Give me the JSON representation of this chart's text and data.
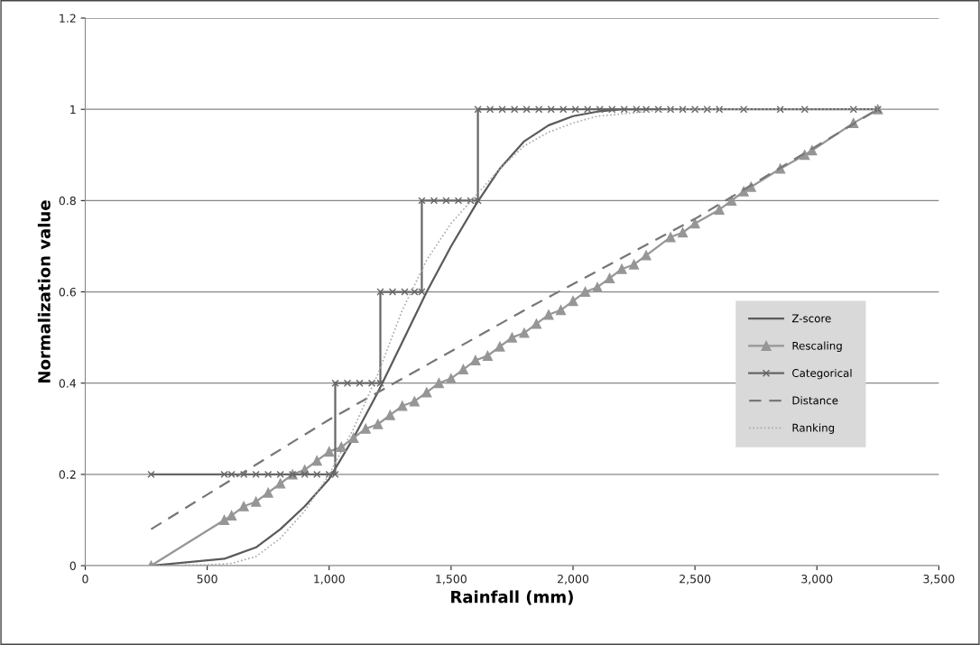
{
  "chart_data": {
    "type": "line",
    "xlabel": "Rainfall (mm)",
    "ylabel": "Normalization value",
    "xlim": [
      0,
      3500
    ],
    "xticks": [
      0,
      {
        "value": 500,
        "label": "500"
      },
      {
        "value": 1000,
        "label": "1,000"
      },
      {
        "value": 1500,
        "label": "1,500"
      },
      {
        "value": 2000,
        "label": "2,000"
      },
      {
        "value": 2500,
        "label": "2,500"
      },
      {
        "value": 3000,
        "label": "3,000"
      },
      {
        "value": 3500,
        "label": "3,500"
      }
    ],
    "ylim": [
      0,
      1.2
    ],
    "yticks": [
      0,
      0.2,
      0.4,
      0.6,
      0.8,
      1,
      1.2
    ],
    "grid": "y",
    "legend": "right",
    "series": [
      {
        "name": "Z-score",
        "color": "#5a5a5a",
        "marker": "none",
        "line_style": "solid",
        "x": [
          270,
          570,
          700,
          800,
          900,
          1000,
          1100,
          1200,
          1300,
          1400,
          1500,
          1600,
          1700,
          1800,
          1900,
          2000,
          2100,
          2200,
          2300
        ],
        "values": [
          0,
          0.015,
          0.04,
          0.08,
          0.13,
          0.19,
          0.28,
          0.38,
          0.49,
          0.6,
          0.7,
          0.79,
          0.87,
          0.93,
          0.965,
          0.985,
          0.995,
          1,
          1
        ]
      },
      {
        "name": "Rescaling",
        "color": "#969696",
        "marker": "triangle",
        "line_style": "solid",
        "x": [
          270,
          570,
          600,
          650,
          700,
          750,
          800,
          850,
          900,
          950,
          1000,
          1050,
          1100,
          1150,
          1200,
          1250,
          1300,
          1350,
          1400,
          1450,
          1500,
          1550,
          1600,
          1650,
          1700,
          1750,
          1800,
          1850,
          1900,
          1950,
          2000,
          2050,
          2100,
          2150,
          2200,
          2250,
          2300,
          2400,
          2450,
          2500,
          2600,
          2650,
          2700,
          2730,
          2850,
          2950,
          2980,
          3150,
          3250
        ],
        "values": [
          0,
          0.1,
          0.11,
          0.13,
          0.14,
          0.16,
          0.18,
          0.2,
          0.21,
          0.23,
          0.25,
          0.26,
          0.28,
          0.3,
          0.31,
          0.33,
          0.35,
          0.36,
          0.38,
          0.4,
          0.41,
          0.43,
          0.45,
          0.46,
          0.48,
          0.5,
          0.51,
          0.53,
          0.55,
          0.56,
          0.58,
          0.6,
          0.61,
          0.63,
          0.65,
          0.66,
          0.68,
          0.72,
          0.73,
          0.75,
          0.78,
          0.8,
          0.82,
          0.83,
          0.87,
          0.9,
          0.91,
          0.97,
          1
        ]
      },
      {
        "name": "Categorical",
        "color": "#666666",
        "marker": "cross",
        "line_style": "solid",
        "x": [
          270,
          570,
          600,
          650,
          700,
          750,
          800,
          850,
          900,
          950,
          1000,
          1025,
          1025,
          1075,
          1125,
          1175,
          1210,
          1210,
          1260,
          1310,
          1350,
          1380,
          1380,
          1430,
          1480,
          1530,
          1580,
          1610,
          1610,
          1660,
          1710,
          1760,
          1810,
          1860,
          1910,
          1960,
          2010,
          2060,
          2110,
          2160,
          2210,
          2260,
          2300,
          2350,
          2400,
          2450,
          2500,
          2550,
          2600,
          2700,
          2850,
          2950,
          3150,
          3250
        ],
        "values": [
          0.2,
          0.2,
          0.2,
          0.2,
          0.2,
          0.2,
          0.2,
          0.2,
          0.2,
          0.2,
          0.2,
          0.2,
          0.4,
          0.4,
          0.4,
          0.4,
          0.4,
          0.6,
          0.6,
          0.6,
          0.6,
          0.6,
          0.8,
          0.8,
          0.8,
          0.8,
          0.8,
          0.8,
          1,
          1,
          1,
          1,
          1,
          1,
          1,
          1,
          1,
          1,
          1,
          1,
          1,
          1,
          1,
          1,
          1,
          1,
          1,
          1,
          1,
          1,
          1,
          1,
          1,
          1
        ]
      },
      {
        "name": "Distance",
        "color": "#777777",
        "marker": "none",
        "line_style": "dashed",
        "x": [
          270,
          1000,
          1835,
          2500,
          3250
        ],
        "values": [
          0.08,
          0.32,
          0.57,
          0.76,
          1
        ]
      },
      {
        "name": "Ranking",
        "color": "#aaaaaa",
        "marker": "none",
        "line_style": "dotted",
        "x": [
          270,
          500,
          600,
          700,
          800,
          900,
          1000,
          1100,
          1200,
          1300,
          1400,
          1500,
          1600,
          1700,
          1800,
          1900,
          2000,
          2100,
          2200,
          2400,
          3250
        ],
        "values": [
          0,
          0.002,
          0.005,
          0.02,
          0.06,
          0.12,
          0.2,
          0.3,
          0.42,
          0.56,
          0.67,
          0.75,
          0.81,
          0.87,
          0.92,
          0.95,
          0.97,
          0.985,
          0.99,
          1,
          1
        ]
      }
    ]
  }
}
